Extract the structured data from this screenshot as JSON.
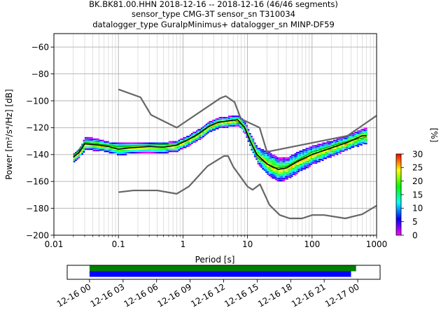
{
  "chart_data": {
    "type": "heatmap",
    "title_lines": [
      "BK.BK81.00.HHN   2018-12-16 -- 2018-12-16  (46/46 segments)",
      "sensor_type CMG-3T sensor_sn T310034",
      "datalogger_type GuralpMinimus+ datalogger_sn MINP-DF59"
    ],
    "xlabel": "Period [s]",
    "ylabel": "Power [m²/s⁴/Hz] [dB]",
    "xscale": "log",
    "xlim": [
      0.01,
      1000
    ],
    "ylim": [
      -200,
      -50
    ],
    "xticks": [
      0.01,
      0.1,
      1,
      10,
      100,
      1000
    ],
    "xtick_labels": [
      "0.01",
      "0.1",
      "1",
      "10",
      "100",
      "1000"
    ],
    "yticks": [
      -200,
      -180,
      -160,
      -140,
      -120,
      -100,
      -80,
      -60
    ],
    "ytick_labels": [
      "−200",
      "−180",
      "−160",
      "−140",
      "−120",
      "−100",
      "−80",
      "−60"
    ],
    "grid": true,
    "noise_models": [
      {
        "name": "high",
        "color": "#666666",
        "points": [
          [
            0.1,
            -91.5
          ],
          [
            0.22,
            -97.4
          ],
          [
            0.32,
            -110.5
          ],
          [
            0.8,
            -120
          ],
          [
            3.8,
            -98
          ],
          [
            4.6,
            -96.5
          ],
          [
            6.3,
            -101
          ],
          [
            7.9,
            -113.5
          ],
          [
            15.4,
            -120
          ],
          [
            20,
            -138
          ],
          [
            354.8,
            -126
          ],
          [
            1000,
            -111
          ]
        ]
      },
      {
        "name": "low",
        "color": "#666666",
        "points": [
          [
            0.1,
            -168
          ],
          [
            0.17,
            -166.7
          ],
          [
            0.4,
            -166.7
          ],
          [
            0.8,
            -169.2
          ],
          [
            1.24,
            -163.7
          ],
          [
            2.4,
            -148.6
          ],
          [
            4.3,
            -141.1
          ],
          [
            5,
            -141.1
          ],
          [
            6,
            -149
          ],
          [
            10,
            -163.8
          ],
          [
            12,
            -166.2
          ],
          [
            15.6,
            -162.1
          ],
          [
            21.9,
            -177.5
          ],
          [
            31.6,
            -185
          ],
          [
            45,
            -187.5
          ],
          [
            70,
            -187.5
          ],
          [
            101,
            -185
          ],
          [
            154,
            -185
          ],
          [
            328,
            -187.5
          ],
          [
            600,
            -184.4
          ],
          [
            1000,
            -178
          ]
        ]
      }
    ],
    "mode_line": {
      "color": "#000000",
      "points": [
        [
          0.02,
          -142
        ],
        [
          0.025,
          -138
        ],
        [
          0.03,
          -132
        ],
        [
          0.05,
          -133
        ],
        [
          0.07,
          -134
        ],
        [
          0.1,
          -136
        ],
        [
          0.15,
          -135
        ],
        [
          0.3,
          -134
        ],
        [
          0.5,
          -134.5
        ],
        [
          0.8,
          -133
        ],
        [
          1.2,
          -129
        ],
        [
          1.8,
          -124
        ],
        [
          2.5,
          -119
        ],
        [
          3.5,
          -116
        ],
        [
          5,
          -115
        ],
        [
          7,
          -114
        ],
        [
          9,
          -120
        ],
        [
          11,
          -130
        ],
        [
          14,
          -140
        ],
        [
          20,
          -147
        ],
        [
          30,
          -151
        ],
        [
          40,
          -150
        ],
        [
          60,
          -145
        ],
        [
          100,
          -140
        ],
        [
          200,
          -135
        ],
        [
          350,
          -131
        ],
        [
          600,
          -126
        ],
        [
          700,
          -126
        ]
      ]
    },
    "mean_line": {
      "color": "#00aa00",
      "points": [
        [
          0.02,
          -141
        ],
        [
          0.03,
          -131
        ],
        [
          0.1,
          -134
        ],
        [
          0.3,
          -133
        ],
        [
          0.8,
          -132
        ],
        [
          1.5,
          -127
        ],
        [
          3,
          -117
        ],
        [
          6,
          -114
        ],
        [
          9,
          -119
        ],
        [
          14,
          -142
        ],
        [
          25,
          -150
        ],
        [
          40,
          -149
        ],
        [
          100,
          -138
        ],
        [
          300,
          -131
        ],
        [
          700,
          -127
        ]
      ]
    },
    "pdf_band": {
      "x": [
        0.02,
        0.025,
        0.03,
        0.05,
        0.07,
        0.1,
        0.15,
        0.3,
        0.5,
        0.8,
        1.2,
        1.8,
        2.5,
        3.5,
        5,
        7,
        9,
        11,
        14,
        20,
        30,
        40,
        60,
        100,
        200,
        350,
        600,
        700
      ],
      "lower": [
        -145,
        -141,
        -136,
        -137,
        -138,
        -140,
        -139,
        -138,
        -138.5,
        -137,
        -133,
        -128,
        -123,
        -120,
        -119,
        -118,
        -124,
        -135,
        -146,
        -155,
        -160,
        -158,
        -153,
        -147,
        -141,
        -136,
        -132,
        -132
      ],
      "upper": [
        -139,
        -134,
        -126,
        -128,
        -130,
        -131,
        -131,
        -130,
        -130.5,
        -129,
        -125,
        -120,
        -115,
        -112,
        -111,
        -110,
        -115,
        -125,
        -134,
        -137,
        -142,
        -142,
        -137,
        -133,
        -129,
        -125,
        -120,
        -120
      ]
    },
    "colorbar": {
      "label": "[%]",
      "min": 0,
      "max": 30,
      "ticks": [
        0,
        5,
        10,
        15,
        20,
        25,
        30
      ],
      "tick_labels": [
        "0",
        "5",
        "10",
        "15",
        "20",
        "25",
        "30"
      ],
      "colormap": [
        "#ff00ff",
        "#0000ff",
        "#00ffff",
        "#00ff00",
        "#ffff00",
        "#ff0000"
      ]
    },
    "coverage": {
      "ticks": [
        "12-16 00",
        "12-16 03",
        "12-16 06",
        "12-16 09",
        "12-16 12",
        "12-16 15",
        "12-16 18",
        "12-16 21",
        "12-17 00"
      ],
      "range_hours": [
        -2,
        26
      ],
      "bars": [
        {
          "color": "#008000",
          "start_hour": 0,
          "end_hour": 23.85
        },
        {
          "color": "#0000ff",
          "start_hour": 0,
          "end_hour": 23.4
        }
      ]
    }
  }
}
